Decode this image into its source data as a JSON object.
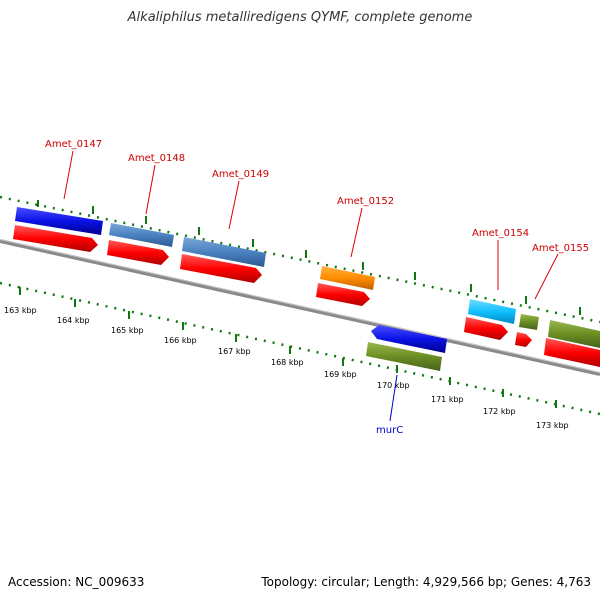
{
  "title": "Alkaliphilus metalliredigens QYMF, complete genome",
  "footer": {
    "accession": "Accession: NC_009633",
    "topology": "Topology: circular; Length: 4,929,566 bp; Genes: 4,763"
  },
  "scale_labels": [
    "163 kbp",
    "164 kbp",
    "165 kbp",
    "166 kbp",
    "167 kbp",
    "168 kbp",
    "169 kbp",
    "170 kbp",
    "171 kbp",
    "172 kbp",
    "173 kbp"
  ],
  "gene_labels": [
    {
      "name": "Amet_0147",
      "color": "#cc0000"
    },
    {
      "name": "Amet_0148",
      "color": "#cc0000"
    },
    {
      "name": "Amet_0149",
      "color": "#cc0000"
    },
    {
      "name": "Amet_0152",
      "color": "#cc0000"
    },
    {
      "name": "Amet_0154",
      "color": "#cc0000"
    },
    {
      "name": "Amet_0155",
      "color": "#cc0000"
    },
    {
      "name": "murC",
      "color": "#0000cc"
    }
  ],
  "colors": {
    "backbone": "#808080",
    "tick": "#117711",
    "red": "#ff0000",
    "blue": "#0a12e6",
    "steelblue": "#4a82c0",
    "orange": "#ff8c00",
    "cyan": "#00bfff",
    "olive": "#6b8e23"
  }
}
